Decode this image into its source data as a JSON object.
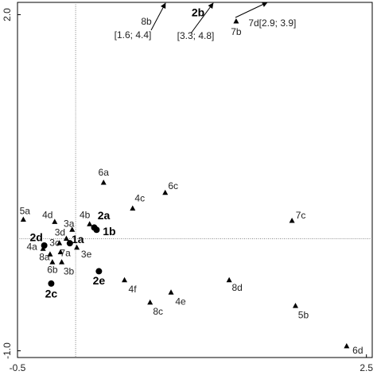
{
  "chart_data": {
    "type": "scatter",
    "xlim": [
      -0.5,
      2.55
    ],
    "ylim": [
      -1.06,
      2.11
    ],
    "xticks": [
      -0.5,
      2.5
    ],
    "yticks": [
      {
        "value": -1,
        "label": "-1.0"
      },
      {
        "value": 2,
        "label": "2.0"
      }
    ],
    "reference_lines": {
      "x": 0,
      "y": 0
    },
    "color": "#000000",
    "points": [
      {
        "label": "6a",
        "x": 0.24,
        "y": 0.5,
        "marker": "triangle"
      },
      {
        "label": "4c",
        "x": 0.49,
        "y": 0.27,
        "marker": "triangle"
      },
      {
        "label": "6c",
        "x": 0.77,
        "y": 0.41,
        "marker": "triangle"
      },
      {
        "label": "7c",
        "x": 1.86,
        "y": 0.16,
        "marker": "triangle"
      },
      {
        "label": "7b",
        "x": 1.38,
        "y": 1.94,
        "marker": "triangle"
      },
      {
        "label": "5a",
        "x": -0.45,
        "y": 0.17,
        "marker": "triangle"
      },
      {
        "label": "4d",
        "x": -0.18,
        "y": 0.15,
        "marker": "triangle"
      },
      {
        "label": "3a",
        "x": -0.03,
        "y": 0.08,
        "marker": "triangle"
      },
      {
        "label": "4b",
        "x": 0.12,
        "y": 0.13,
        "marker": "triangle"
      },
      {
        "label": "2a",
        "x": 0.16,
        "y": 0.1,
        "marker": "circle"
      },
      {
        "label": "1b",
        "x": 0.18,
        "y": 0.08,
        "marker": "circle"
      },
      {
        "label": "3d",
        "x": -0.08,
        "y": 0.0,
        "marker": "triangle"
      },
      {
        "label": "1a",
        "x": -0.05,
        "y": -0.04,
        "marker": "circle"
      },
      {
        "label": "2d",
        "x": -0.27,
        "y": -0.06,
        "marker": "circle"
      },
      {
        "label": "3c",
        "x": -0.14,
        "y": -0.04,
        "marker": "triangle"
      },
      {
        "label": "4a",
        "x": -0.28,
        "y": -0.09,
        "marker": "triangle"
      },
      {
        "label": "8a",
        "x": -0.22,
        "y": -0.14,
        "marker": "triangle"
      },
      {
        "label": "7a",
        "x": -0.13,
        "y": -0.12,
        "marker": "triangle"
      },
      {
        "label": "3e",
        "x": 0.01,
        "y": -0.08,
        "marker": "triangle"
      },
      {
        "label": "6b",
        "x": -0.2,
        "y": -0.21,
        "marker": "triangle"
      },
      {
        "label": "3b",
        "x": -0.12,
        "y": -0.21,
        "marker": "triangle"
      },
      {
        "label": "2c",
        "x": -0.21,
        "y": -0.4,
        "marker": "circle"
      },
      {
        "label": "2e",
        "x": 0.2,
        "y": -0.29,
        "marker": "circle"
      },
      {
        "label": "4f",
        "x": 0.42,
        "y": -0.37,
        "marker": "triangle"
      },
      {
        "label": "4e",
        "x": 0.82,
        "y": -0.48,
        "marker": "triangle"
      },
      {
        "label": "8c",
        "x": 0.64,
        "y": -0.57,
        "marker": "triangle"
      },
      {
        "label": "8d",
        "x": 1.32,
        "y": -0.37,
        "marker": "triangle"
      },
      {
        "label": "5b",
        "x": 1.89,
        "y": -0.6,
        "marker": "triangle"
      },
      {
        "label": "6d",
        "x": 2.33,
        "y": -0.96,
        "marker": "triangle"
      }
    ],
    "outliers": [
      {
        "label": "8b",
        "coords": "[1.6; 4.4]",
        "marker": "triangle"
      },
      {
        "label": "2b",
        "coords": "[3.3; 4.8]",
        "marker": "circle"
      },
      {
        "label": "7d",
        "coords": "[2.9; 3.9]",
        "marker": "triangle"
      }
    ]
  }
}
